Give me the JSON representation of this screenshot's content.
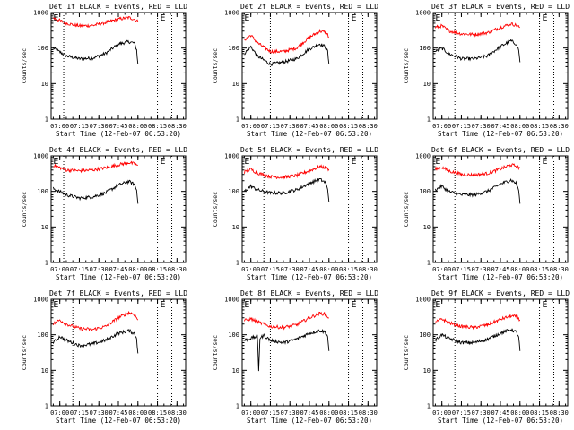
{
  "chart_data": [
    {
      "type": "line",
      "title": "Det 1f BLACK = Events, RED = LLD",
      "xlabel": "Start Time (12-Feb-07 06:53:20)",
      "ylabel": "Counts/sec",
      "yscale": "log",
      "ylim": [
        1,
        1000
      ],
      "xlim": [
        "06:53:20",
        "08:36:40"
      ],
      "x_ticks": [
        "07:00",
        "07:15",
        "07:30",
        "07:45",
        "08:00",
        "08:15",
        "08:30"
      ],
      "y_ticks": [
        "1",
        "10",
        "100",
        "1000"
      ],
      "vlines": [
        "07:03",
        "08:15",
        "08:26"
      ],
      "markers": [
        {
          "label": "E",
          "time": "06:55"
        },
        {
          "label": "E",
          "time": "08:17"
        }
      ],
      "series": [
        {
          "name": "BLACK = Events",
          "color": "#000000",
          "x": [
            "06:55",
            "07:05",
            "07:15",
            "07:25",
            "07:35",
            "07:45",
            "07:53",
            "07:57",
            "07:59",
            "08:00"
          ],
          "values": [
            100,
            60,
            50,
            52,
            70,
            130,
            150,
            140,
            90,
            35
          ]
        },
        {
          "name": "RED = LLD",
          "color": "#ff0000",
          "x": [
            "06:55",
            "07:05",
            "07:15",
            "07:25",
            "07:35",
            "07:45",
            "07:53",
            "07:57",
            "07:59",
            "08:00"
          ],
          "values": [
            700,
            500,
            420,
            430,
            520,
            650,
            720,
            650,
            580,
            560
          ]
        }
      ]
    },
    {
      "type": "line",
      "title": "Det 2f BLACK = Events, RED = LLD",
      "xlabel": "Start Time (12-Feb-07 06:53:20)",
      "ylabel": "Counts/sec",
      "yscale": "log",
      "ylim": [
        1,
        1000
      ],
      "xlim": [
        "06:53:20",
        "08:36:40"
      ],
      "x_ticks": [
        "07:00",
        "07:15",
        "07:30",
        "07:45",
        "08:00",
        "08:15",
        "08:30"
      ],
      "y_ticks": [
        "1",
        "10",
        "100",
        "1000"
      ],
      "vlines": [
        "07:15",
        "08:15",
        "08:26"
      ],
      "markers": [
        {
          "label": "E",
          "time": "06:55"
        },
        {
          "label": "E",
          "time": "08:17"
        }
      ],
      "series": [
        {
          "name": "BLACK = Events",
          "color": "#000000",
          "x": [
            "06:55",
            "07:00",
            "07:05",
            "07:15",
            "07:25",
            "07:35",
            "07:45",
            "07:53",
            "07:57",
            "07:59",
            "08:00"
          ],
          "values": [
            70,
            110,
            60,
            35,
            40,
            50,
            95,
            130,
            110,
            80,
            35
          ]
        },
        {
          "name": "RED = LLD",
          "color": "#ff0000",
          "x": [
            "06:55",
            "07:00",
            "07:05",
            "07:15",
            "07:25",
            "07:35",
            "07:45",
            "07:53",
            "07:57",
            "07:59",
            "08:00"
          ],
          "values": [
            170,
            230,
            140,
            80,
            80,
            100,
            200,
            300,
            280,
            240,
            200
          ]
        }
      ]
    },
    {
      "type": "line",
      "title": "Det 3f BLACK = Events, RED = LLD",
      "xlabel": "Start Time (12-Feb-07 06:53:20)",
      "ylabel": "Counts/sec",
      "yscale": "log",
      "ylim": [
        1,
        1000
      ],
      "xlim": [
        "06:53:20",
        "08:36:40"
      ],
      "x_ticks": [
        "07:00",
        "07:15",
        "07:30",
        "07:45",
        "08:00",
        "08:15",
        "08:30"
      ],
      "y_ticks": [
        "1",
        "10",
        "100",
        "1000"
      ],
      "vlines": [
        "07:10",
        "08:15",
        "08:26"
      ],
      "markers": [
        {
          "label": "E",
          "time": "06:55"
        },
        {
          "label": "E",
          "time": "08:17"
        }
      ],
      "series": [
        {
          "name": "BLACK = Events",
          "color": "#000000",
          "x": [
            "06:55",
            "07:00",
            "07:05",
            "07:15",
            "07:25",
            "07:35",
            "07:45",
            "07:53",
            "07:57",
            "07:59",
            "08:00"
          ],
          "values": [
            80,
            100,
            70,
            50,
            50,
            60,
            110,
            160,
            130,
            90,
            40
          ]
        },
        {
          "name": "RED = LLD",
          "color": "#ff0000",
          "x": [
            "06:55",
            "07:00",
            "07:05",
            "07:15",
            "07:25",
            "07:35",
            "07:45",
            "07:53",
            "07:57",
            "07:59",
            "08:00"
          ],
          "values": [
            380,
            420,
            310,
            250,
            240,
            270,
            380,
            480,
            440,
            400,
            380
          ]
        }
      ]
    },
    {
      "type": "line",
      "title": "Det 4f BLACK = Events, RED = LLD",
      "xlabel": "Start Time (12-Feb-07 06:53:20)",
      "ylabel": "Counts/sec",
      "yscale": "log",
      "ylim": [
        1,
        1000
      ],
      "xlim": [
        "06:53:20",
        "08:36:40"
      ],
      "x_ticks": [
        "07:00",
        "07:15",
        "07:30",
        "07:45",
        "08:00",
        "08:15",
        "08:30"
      ],
      "y_ticks": [
        "1",
        "10",
        "100",
        "1000"
      ],
      "vlines": [
        "07:03",
        "08:15",
        "08:26"
      ],
      "markers": [
        {
          "label": "E",
          "time": "06:55"
        },
        {
          "label": "E",
          "time": "08:17"
        }
      ],
      "series": [
        {
          "name": "BLACK = Events",
          "color": "#000000",
          "x": [
            "06:55",
            "07:05",
            "07:15",
            "07:25",
            "07:35",
            "07:45",
            "07:53",
            "07:57",
            "07:59",
            "08:00"
          ],
          "values": [
            120,
            80,
            65,
            70,
            90,
            150,
            190,
            160,
            110,
            45
          ]
        },
        {
          "name": "RED = LLD",
          "color": "#ff0000",
          "x": [
            "06:55",
            "07:05",
            "07:15",
            "07:25",
            "07:35",
            "07:45",
            "07:53",
            "07:57",
            "07:59",
            "08:00"
          ],
          "values": [
            550,
            400,
            380,
            400,
            460,
            560,
            650,
            600,
            560,
            540
          ]
        }
      ]
    },
    {
      "type": "line",
      "title": "Det 5f BLACK = Events, RED = LLD",
      "xlabel": "Start Time (12-Feb-07 06:53:20)",
      "ylabel": "Counts/sec",
      "yscale": "log",
      "ylim": [
        1,
        1000
      ],
      "xlim": [
        "06:53:20",
        "08:36:40"
      ],
      "x_ticks": [
        "07:00",
        "07:15",
        "07:30",
        "07:45",
        "08:00",
        "08:15",
        "08:30"
      ],
      "y_ticks": [
        "1",
        "10",
        "100",
        "1000"
      ],
      "vlines": [
        "07:10",
        "08:15",
        "08:26"
      ],
      "markers": [
        {
          "label": "E",
          "time": "06:55"
        },
        {
          "label": "E",
          "time": "08:17"
        }
      ],
      "series": [
        {
          "name": "BLACK = Events",
          "color": "#000000",
          "x": [
            "06:55",
            "07:00",
            "07:05",
            "07:15",
            "07:25",
            "07:35",
            "07:45",
            "07:53",
            "07:57",
            "07:59",
            "08:00"
          ],
          "values": [
            100,
            140,
            110,
            90,
            90,
            110,
            170,
            220,
            180,
            120,
            50
          ]
        },
        {
          "name": "RED = LLD",
          "color": "#ff0000",
          "x": [
            "06:55",
            "07:00",
            "07:05",
            "07:15",
            "07:25",
            "07:35",
            "07:45",
            "07:53",
            "07:57",
            "07:59",
            "08:00"
          ],
          "values": [
            350,
            420,
            330,
            260,
            250,
            280,
            380,
            500,
            470,
            430,
            420
          ]
        }
      ]
    },
    {
      "type": "line",
      "title": "Det 6f BLACK = Events, RED = LLD",
      "xlabel": "Start Time (12-Feb-07 06:53:20)",
      "ylabel": "Counts/sec",
      "yscale": "log",
      "ylim": [
        1,
        1000
      ],
      "xlim": [
        "06:53:20",
        "08:36:40"
      ],
      "x_ticks": [
        "07:00",
        "07:15",
        "07:30",
        "07:45",
        "08:00",
        "08:15",
        "08:30"
      ],
      "y_ticks": [
        "1",
        "10",
        "100",
        "1000"
      ],
      "vlines": [
        "07:10",
        "08:15",
        "08:26"
      ],
      "markers": [
        {
          "label": "E",
          "time": "06:55"
        },
        {
          "label": "E",
          "time": "08:17"
        }
      ],
      "series": [
        {
          "name": "BLACK = Events",
          "color": "#000000",
          "x": [
            "06:55",
            "07:00",
            "07:05",
            "07:15",
            "07:25",
            "07:35",
            "07:45",
            "07:53",
            "07:57",
            "07:59",
            "08:00"
          ],
          "values": [
            110,
            140,
            100,
            80,
            80,
            100,
            160,
            210,
            170,
            110,
            45
          ]
        },
        {
          "name": "RED = LLD",
          "color": "#ff0000",
          "x": [
            "06:55",
            "07:00",
            "07:05",
            "07:15",
            "07:25",
            "07:35",
            "07:45",
            "07:53",
            "07:57",
            "07:59",
            "08:00"
          ],
          "values": [
            420,
            480,
            380,
            300,
            290,
            320,
            430,
            560,
            520,
            470,
            450
          ]
        }
      ]
    },
    {
      "type": "line",
      "title": "Det 7f BLACK = Events, RED = LLD",
      "xlabel": "Start Time (12-Feb-07 06:53:20)",
      "ylabel": "Counts/sec",
      "yscale": "log",
      "ylim": [
        1,
        1000
      ],
      "xlim": [
        "06:53:20",
        "08:36:40"
      ],
      "x_ticks": [
        "07:00",
        "07:15",
        "07:30",
        "07:45",
        "08:00",
        "08:15",
        "08:30"
      ],
      "y_ticks": [
        "1",
        "10",
        "100",
        "1000"
      ],
      "vlines": [
        "07:10",
        "08:15",
        "08:26"
      ],
      "markers": [
        {
          "label": "E",
          "time": "06:55"
        },
        {
          "label": "E",
          "time": "08:17"
        }
      ],
      "series": [
        {
          "name": "BLACK = Events",
          "color": "#000000",
          "x": [
            "06:55",
            "07:00",
            "07:05",
            "07:15",
            "07:25",
            "07:35",
            "07:45",
            "07:53",
            "07:57",
            "07:59",
            "08:00"
          ],
          "values": [
            60,
            90,
            70,
            50,
            55,
            70,
            110,
            130,
            110,
            80,
            30
          ]
        },
        {
          "name": "RED = LLD",
          "color": "#ff0000",
          "x": [
            "06:55",
            "07:00",
            "07:05",
            "07:15",
            "07:25",
            "07:35",
            "07:45",
            "07:53",
            "07:57",
            "07:59",
            "08:00"
          ],
          "values": [
            200,
            260,
            200,
            150,
            140,
            170,
            300,
            420,
            380,
            300,
            260
          ]
        }
      ]
    },
    {
      "type": "line",
      "title": "Det 8f BLACK = Events, RED = LLD",
      "xlabel": "Start Time (12-Feb-07 06:53:20)",
      "ylabel": "Counts/sec",
      "yscale": "log",
      "ylim": [
        1,
        1000
      ],
      "xlim": [
        "06:53:20",
        "08:36:40"
      ],
      "x_ticks": [
        "07:00",
        "07:15",
        "07:30",
        "07:45",
        "08:00",
        "08:15",
        "08:30"
      ],
      "y_ticks": [
        "1",
        "10",
        "100",
        "1000"
      ],
      "vlines": [
        "07:15",
        "08:15",
        "08:26"
      ],
      "markers": [
        {
          "label": "E",
          "time": "06:55"
        },
        {
          "label": "E",
          "time": "08:17"
        }
      ],
      "series": [
        {
          "name": "BLACK = Events",
          "color": "#000000",
          "x": [
            "06:55",
            "07:00",
            "07:05",
            "07:06",
            "07:07",
            "07:10",
            "07:15",
            "07:25",
            "07:35",
            "07:45",
            "07:53",
            "07:57",
            "07:59",
            "08:00"
          ],
          "values": [
            70,
            80,
            90,
            10,
            80,
            95,
            70,
            60,
            75,
            110,
            130,
            120,
            90,
            35
          ]
        },
        {
          "name": "RED = LLD",
          "color": "#ff0000",
          "x": [
            "06:55",
            "07:00",
            "07:05",
            "07:10",
            "07:15",
            "07:25",
            "07:35",
            "07:45",
            "07:53",
            "07:57",
            "07:59",
            "08:00"
          ],
          "values": [
            250,
            280,
            230,
            200,
            170,
            160,
            190,
            300,
            400,
            380,
            320,
            300
          ]
        }
      ]
    },
    {
      "type": "line",
      "title": "Det 9f BLACK = Events, RED = LLD",
      "xlabel": "Start Time (12-Feb-07 06:53:20)",
      "ylabel": "Counts/sec",
      "yscale": "log",
      "ylim": [
        1,
        1000
      ],
      "xlim": [
        "06:53:20",
        "08:36:40"
      ],
      "x_ticks": [
        "07:00",
        "07:15",
        "07:30",
        "07:45",
        "08:00",
        "08:15",
        "08:30"
      ],
      "y_ticks": [
        "1",
        "10",
        "100",
        "1000"
      ],
      "vlines": [
        "07:10",
        "08:15",
        "08:26"
      ],
      "markers": [
        {
          "label": "E",
          "time": "06:55"
        },
        {
          "label": "E",
          "time": "08:17"
        }
      ],
      "series": [
        {
          "name": "BLACK = Events",
          "color": "#000000",
          "x": [
            "06:55",
            "07:00",
            "07:05",
            "07:15",
            "07:25",
            "07:35",
            "07:45",
            "07:53",
            "07:57",
            "07:59",
            "08:00"
          ],
          "values": [
            70,
            100,
            80,
            60,
            60,
            75,
            110,
            140,
            120,
            90,
            35
          ]
        },
        {
          "name": "RED = LLD",
          "color": "#ff0000",
          "x": [
            "06:55",
            "07:00",
            "07:05",
            "07:15",
            "07:25",
            "07:35",
            "07:45",
            "07:53",
            "07:57",
            "07:59",
            "08:00"
          ],
          "values": [
            220,
            280,
            220,
            170,
            160,
            190,
            270,
            340,
            320,
            290,
            260
          ]
        }
      ]
    }
  ]
}
